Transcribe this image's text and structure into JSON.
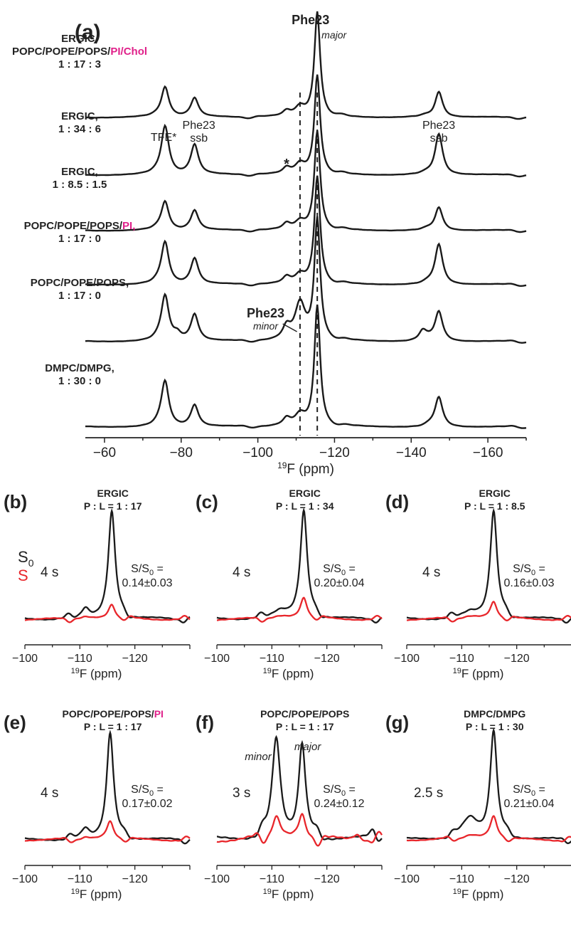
{
  "colors": {
    "s0": "#1a1a1a",
    "s": "#e8262b",
    "accent": "#e0218a"
  },
  "chart_data": [
    {
      "panel": "(a)",
      "type": "line",
      "xlabel_iso": "19",
      "xlabel_rest": "F (ppm)",
      "xlim": [
        -55,
        -170
      ],
      "xticks": [
        -60,
        -80,
        -100,
        -120,
        -140,
        -160
      ],
      "xtick_labels": [
        "−60",
        "−80",
        "−100",
        "−120",
        "−140",
        "−160"
      ],
      "reference_lines_ppm": [
        -111,
        -115.5
      ],
      "top_label": "Phe23",
      "top_sublabel": "major",
      "annotations": {
        "tfe": "TFE*",
        "ssb_left_1": "Phe23",
        "ssb_left_2": "ssb",
        "ssb_right_1": "Phe23",
        "ssb_right_2": "ssb",
        "star": "*",
        "minor_title": "Phe23",
        "minor_sub": "minor"
      },
      "series": [
        {
          "label_lines": [
            [
              "ERGIC,"
            ],
            [
              "POPC/POPE/POPS/",
              "PI/Chol"
            ],
            [
              "1 : 17 : 3"
            ]
          ],
          "peaks": [
            {
              "x": -75.8,
              "h": 0.3
            },
            {
              "x": -83.5,
              "h": 0.18
            },
            {
              "x": -107.5,
              "h": 0.05
            },
            {
              "x": -111,
              "h": 0.09
            },
            {
              "x": -115.5,
              "h": 1.0
            },
            {
              "x": -147.2,
              "h": 0.25
            }
          ]
        },
        {
          "label_lines": [
            [
              "ERGIC,"
            ],
            [
              "1 : 34 : 6"
            ]
          ],
          "peaks": [
            {
              "x": -75.8,
              "h": 0.5
            },
            {
              "x": -83.5,
              "h": 0.3
            },
            {
              "x": -107.5,
              "h": 0.06
            },
            {
              "x": -111,
              "h": 0.1
            },
            {
              "x": -115.5,
              "h": 1.0
            },
            {
              "x": -147.2,
              "h": 0.42
            }
          ]
        },
        {
          "label_lines": [
            [
              "ERGIC,"
            ],
            [
              "1 : 8.5 : 1.5"
            ]
          ],
          "peaks": [
            {
              "x": -75.8,
              "h": 0.3
            },
            {
              "x": -83.5,
              "h": 0.2
            },
            {
              "x": -107.5,
              "h": 0.06
            },
            {
              "x": -111,
              "h": 0.08
            },
            {
              "x": -115.5,
              "h": 1.0
            },
            {
              "x": -147.2,
              "h": 0.24
            }
          ]
        },
        {
          "label_lines": [
            [
              "POPC/POPE/POPS/",
              "PI,"
            ],
            [
              "1 : 17 : 0"
            ]
          ],
          "peaks": [
            {
              "x": -75.8,
              "h": 0.4
            },
            {
              "x": -83.5,
              "h": 0.24
            },
            {
              "x": -107.5,
              "h": 0.06
            },
            {
              "x": -111,
              "h": 0.08
            },
            {
              "x": -115.5,
              "h": 1.0
            },
            {
              "x": -147.2,
              "h": 0.38
            }
          ]
        },
        {
          "label_lines": [
            [
              "POPC/POPE/POPS,"
            ],
            [
              "1 : 17 : 0"
            ]
          ],
          "peaks": [
            {
              "x": -75.8,
              "h": 0.38
            },
            {
              "x": -79,
              "h": 0.05
            },
            {
              "x": -83.5,
              "h": 0.22
            },
            {
              "x": -107.5,
              "h": 0.1
            },
            {
              "x": -111,
              "h": 0.3
            },
            {
              "x": -115.5,
              "h": 1.0
            },
            {
              "x": -143,
              "h": 0.08
            },
            {
              "x": -147.2,
              "h": 0.25
            }
          ]
        },
        {
          "label_lines": [
            [
              "DMPC/DMPG,"
            ],
            [
              "1 : 30 : 0"
            ]
          ],
          "peaks": [
            {
              "x": -75.8,
              "h": 0.38
            },
            {
              "x": -83.5,
              "h": 0.18
            },
            {
              "x": -107.5,
              "h": 0.06
            },
            {
              "x": -111,
              "h": 0.09
            },
            {
              "x": -115.5,
              "h": 1.0
            },
            {
              "x": -147.2,
              "h": 0.25
            }
          ]
        }
      ]
    },
    {
      "panel": "(b)",
      "type": "line",
      "title_parts": [
        "ERGIC"
      ],
      "subtitle": "P : L = 1 : 17",
      "xlim": [
        -100,
        -130
      ],
      "xticks": [
        -100,
        -110,
        -120
      ],
      "xtick_labels": [
        "−100",
        "−110",
        "−120"
      ],
      "xlabel_iso": "19",
      "xlabel_rest": "F (ppm)",
      "legend": {
        "s0_main": "S",
        "s0_sub": "0",
        "s": "S"
      },
      "time": "4 s",
      "ratio_main": "S/S",
      "ratio_sub": "0",
      "ratio_eq": " =",
      "ratio_value": "0.14±0.03",
      "s0_peaks": [
        {
          "x": -115.8,
          "h": 1.0
        },
        {
          "x": -111,
          "h": 0.1
        }
      ],
      "s_peaks": [
        {
          "x": -115.8,
          "h": 0.14
        },
        {
          "x": -111,
          "h": 0.015
        }
      ]
    },
    {
      "panel": "(c)",
      "type": "line",
      "title_parts": [
        "ERGIC"
      ],
      "subtitle": "P : L = 1 : 34",
      "xlim": [
        -100,
        -130
      ],
      "xticks": [
        -100,
        -110,
        -120
      ],
      "xtick_labels": [
        "−100",
        "−110",
        "−120"
      ],
      "xlabel_iso": "19",
      "xlabel_rest": "F (ppm)",
      "time": "4 s",
      "ratio_main": "S/S",
      "ratio_sub": "0",
      "ratio_eq": " =",
      "ratio_value": "0.20±0.04",
      "s0_peaks": [
        {
          "x": -115.8,
          "h": 1.0
        },
        {
          "x": -111.5,
          "h": 0.08
        }
      ],
      "s_peaks": [
        {
          "x": -115.8,
          "h": 0.2
        },
        {
          "x": -111.5,
          "h": 0.02
        }
      ]
    },
    {
      "panel": "(d)",
      "type": "line",
      "title_parts": [
        "ERGIC"
      ],
      "subtitle": "P : L = 1 : 8.5",
      "xlim": [
        -100,
        -130
      ],
      "xticks": [
        -100,
        -110,
        -120
      ],
      "xtick_labels": [
        "−100",
        "−110",
        "−120"
      ],
      "xlabel_iso": "19",
      "xlabel_rest": "F (ppm)",
      "time": "4 s",
      "ratio_main": "S/S",
      "ratio_sub": "0",
      "ratio_eq": " =",
      "ratio_value": "0.16±0.03",
      "s0_peaks": [
        {
          "x": -115.8,
          "h": 1.0
        },
        {
          "x": -111.5,
          "h": 0.07
        }
      ],
      "s_peaks": [
        {
          "x": -115.8,
          "h": 0.16
        },
        {
          "x": -111.5,
          "h": 0.02
        }
      ]
    },
    {
      "panel": "(e)",
      "type": "line",
      "title_parts": [
        "POPC/POPE/POPS/",
        "PI"
      ],
      "subtitle": "P : L = 1 : 17",
      "xlim": [
        -100,
        -130
      ],
      "xticks": [
        -100,
        -110,
        -120
      ],
      "xtick_labels": [
        "−100",
        "−110",
        "−120"
      ],
      "xlabel_iso": "19",
      "xlabel_rest": "F (ppm)",
      "time": "4 s",
      "ratio_main": "S/S",
      "ratio_sub": "0",
      "ratio_eq": " =",
      "ratio_value": "0.17±0.02",
      "s0_peaks": [
        {
          "x": -115.5,
          "h": 1.0
        },
        {
          "x": -111,
          "h": 0.1
        }
      ],
      "s_peaks": [
        {
          "x": -115.5,
          "h": 0.17
        },
        {
          "x": -111,
          "h": 0.02
        }
      ]
    },
    {
      "panel": "(f)",
      "type": "line",
      "title_parts": [
        "POPC/POPE/POPS"
      ],
      "subtitle": "P : L = 1 : 17",
      "xlim": [
        -100,
        -130
      ],
      "xticks": [
        -100,
        -110,
        -120
      ],
      "xtick_labels": [
        "−100",
        "−110",
        "−120"
      ],
      "xlabel_iso": "19",
      "xlabel_rest": "F (ppm)",
      "peak_labels": {
        "minor": "minor",
        "major": "major"
      },
      "time": "3 s",
      "ratio_main": "S/S",
      "ratio_sub": "0",
      "ratio_eq": " =",
      "ratio_value": "0.24±0.12",
      "s0_peaks": [
        {
          "x": -110.8,
          "h": 0.95
        },
        {
          "x": -115.5,
          "h": 0.88
        },
        {
          "x": -128.5,
          "h": 0.1
        }
      ],
      "s_peaks": [
        {
          "x": -110.8,
          "h": 0.22
        },
        {
          "x": -115.5,
          "h": 0.22
        },
        {
          "x": -125.5,
          "h": 0.06
        }
      ]
    },
    {
      "panel": "(g)",
      "type": "line",
      "title_parts": [
        "DMPC/DMPG"
      ],
      "subtitle": "P : L = 1 : 30",
      "xlim": [
        -100,
        -130
      ],
      "xticks": [
        -100,
        -110,
        -120
      ],
      "xtick_labels": [
        "−100",
        "−110",
        "−120"
      ],
      "xlabel_iso": "19",
      "xlabel_rest": "F (ppm)",
      "time": "2.5 s",
      "ratio_main": "S/S",
      "ratio_sub": "0",
      "ratio_eq": " =",
      "ratio_value": "0.21±0.04",
      "s0_peaks": [
        {
          "x": -115.8,
          "h": 1.0
        },
        {
          "x": -111.5,
          "h": 0.2
        }
      ],
      "s_peaks": [
        {
          "x": -115.8,
          "h": 0.21
        },
        {
          "x": -111.5,
          "h": 0.04
        }
      ]
    }
  ]
}
